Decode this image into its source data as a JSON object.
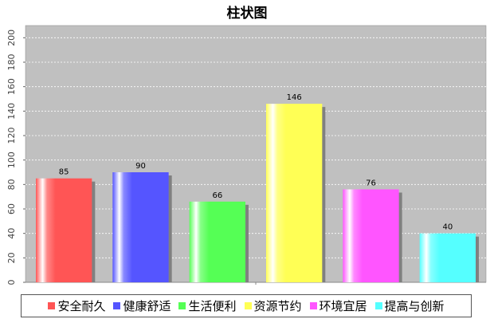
{
  "chart_data": {
    "type": "bar",
    "title": "柱状图",
    "xlabel": "",
    "ylabel": "",
    "ylim": [
      0,
      210
    ],
    "yticks": [
      0,
      20,
      40,
      60,
      80,
      100,
      120,
      140,
      160,
      180,
      200
    ],
    "grid": true,
    "legend_position": "bottom",
    "categories": [
      "安全耐久",
      "健康舒适",
      "生活便利",
      "资源节约",
      "环境宜居",
      "提高与创新"
    ],
    "values": [
      85,
      90,
      66,
      146,
      76,
      40
    ],
    "colors": [
      "#ff5555",
      "#5555ff",
      "#55ff55",
      "#ffff55",
      "#ff55ff",
      "#55ffff"
    ],
    "plot_background": "#c0c0c0"
  }
}
